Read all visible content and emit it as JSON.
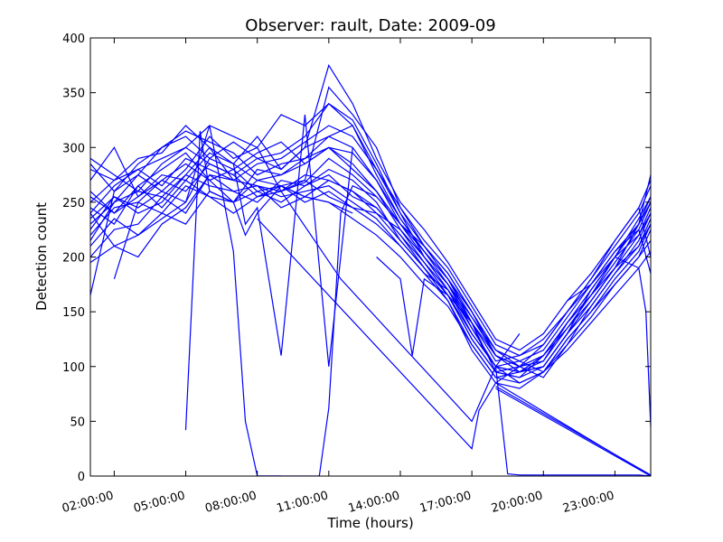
{
  "chart_data": {
    "type": "line",
    "title": "Observer: rault, Date: 2009-09",
    "xlabel": "Time (hours)",
    "ylabel": "Detection count",
    "ylim": [
      0,
      400
    ],
    "xlim": [
      1.0,
      24.5
    ],
    "x_ticks": [
      2,
      5,
      8,
      11,
      14,
      17,
      20,
      23
    ],
    "x_tick_labels": [
      "02:00:00",
      "05:00:00",
      "08:00:00",
      "11:00:00",
      "14:00:00",
      "17:00:00",
      "20:00:00",
      "23:00:00"
    ],
    "y_ticks": [
      0,
      50,
      100,
      150,
      200,
      250,
      300,
      350,
      400
    ],
    "y_tick_labels": [
      "0",
      "50",
      "100",
      "150",
      "200",
      "250",
      "300",
      "350",
      "400"
    ],
    "grid": false,
    "line_color": "#0000ff",
    "series": [
      {
        "x": [
          1.0,
          2.0,
          3.0,
          4.0,
          5.0,
          6.0,
          7.0,
          8.0,
          9.0,
          10.0,
          11.0,
          12.0,
          13.0,
          14.0,
          15.0,
          16.0,
          17.0,
          18.0,
          19.0,
          20.0,
          21.0,
          22.0,
          23.0,
          24.0,
          24.5
        ],
        "y": [
          215,
          250,
          260,
          255,
          275,
          300,
          270,
          265,
          260,
          268,
          290,
          275,
          255,
          230,
          210,
          185,
          150,
          110,
          100,
          105,
          140,
          165,
          190,
          230,
          275
        ]
      },
      {
        "x": [
          1.0,
          2.0,
          3.0,
          4.0,
          5.0,
          6.0,
          7.0,
          8.0,
          9.0,
          10.0,
          11.0,
          12.0,
          13.0,
          14.0,
          15.0,
          16.0,
          17.0,
          18.0,
          19.0,
          20.0,
          21.0,
          22.0,
          23.0,
          24.0,
          24.5
        ],
        "y": [
          240,
          265,
          280,
          290,
          300,
          285,
          275,
          290,
          295,
          310,
          340,
          320,
          280,
          240,
          200,
          175,
          140,
          95,
          90,
          100,
          130,
          170,
          200,
          235,
          255
        ]
      },
      {
        "x": [
          1.0,
          2.0,
          3.0,
          4.0,
          5.0,
          6.0,
          7.0,
          8.0,
          9.0,
          10.0,
          11.0,
          12.0,
          13.0,
          14.0,
          15.0,
          16.0,
          17.0,
          18.0,
          19.0,
          20.0,
          21.0,
          22.0,
          23.0,
          24.0,
          24.5
        ],
        "y": [
          260,
          240,
          255,
          270,
          285,
          270,
          250,
          280,
          275,
          285,
          300,
          280,
          260,
          225,
          195,
          170,
          130,
          100,
          85,
          95,
          120,
          155,
          185,
          210,
          230
        ]
      },
      {
        "x": [
          1.0,
          2.0,
          3.0,
          4.0,
          5.0,
          6.0,
          7.0,
          8.0,
          9.0,
          10.0,
          11.0,
          12.0,
          13.0,
          14.0,
          15.0,
          16.0,
          17.0,
          18.0,
          19.0,
          20.0,
          21.0,
          22.0,
          23.0,
          24.0,
          24.5
        ],
        "y": [
          225,
          255,
          245,
          260,
          250,
          290,
          280,
          260,
          250,
          265,
          280,
          270,
          250,
          215,
          190,
          160,
          120,
          90,
          95,
          110,
          140,
          165,
          200,
          220,
          245
        ]
      },
      {
        "x": [
          1.0,
          2.0,
          3.0,
          4.0,
          5.0,
          6.0,
          7.0,
          8.0,
          9.0,
          10.0,
          11.0,
          12.0,
          13.0,
          14.0,
          15.0,
          16.0,
          17.0,
          18.0,
          19.0,
          20.0,
          21.0,
          22.0,
          23.0,
          24.0,
          24.5
        ],
        "y": [
          280,
          270,
          290,
          295,
          320,
          300,
          285,
          310,
          280,
          300,
          310,
          320,
          275,
          235,
          205,
          180,
          140,
          105,
          110,
          125,
          150,
          180,
          215,
          245,
          270
        ]
      },
      {
        "x": [
          1.0,
          2.0,
          3.0,
          4.0,
          5.0,
          6.0,
          7.0,
          8.0,
          9.0,
          10.0,
          11.0,
          12.0,
          13.0,
          14.0,
          15.0,
          16.0,
          17.0,
          18.0,
          19.0,
          20.0,
          21.0,
          22.0,
          23.0,
          24.0,
          24.5
        ],
        "y": [
          245,
          230,
          265,
          245,
          270,
          255,
          240,
          255,
          265,
          250,
          260,
          245,
          230,
          210,
          185,
          170,
          135,
          100,
          105,
          95,
          125,
          150,
          175,
          200,
          215
        ]
      },
      {
        "x": [
          1.0,
          2.0,
          3.0,
          4.0,
          5.0,
          6.0,
          7.0,
          8.0,
          9.0,
          10.0,
          11.0,
          12.0,
          13.0,
          14.0,
          15.0,
          16.0,
          17.0,
          18.0,
          19.0,
          20.0,
          21.0,
          22.0,
          23.0,
          24.0,
          24.5
        ],
        "y": [
          165,
          260,
          285,
          300,
          315,
          305,
          295,
          275,
          285,
          290,
          310,
          300,
          270,
          230,
          200,
          175,
          145,
          115,
          100,
          120,
          150,
          175,
          205,
          225,
          250
        ]
      },
      {
        "x": [
          1.0,
          2.0,
          3.0,
          4.0,
          5.0,
          6.0,
          7.0,
          8.0,
          9.0,
          10.0,
          11.0,
          12.0,
          13.0,
          14.0,
          15.0,
          16.0,
          17.0,
          18.0,
          19.0,
          20.0,
          21.0,
          22.0,
          23.0,
          24.0,
          24.5
        ],
        "y": [
          195,
          210,
          200,
          230,
          245,
          275,
          260,
          250,
          270,
          265,
          275,
          255,
          245,
          220,
          195,
          165,
          125,
          95,
          90,
          110,
          135,
          160,
          190,
          210,
          235
        ]
      },
      {
        "x": [
          1.0,
          2.0,
          3.0,
          4.0,
          5.0,
          6.0,
          7.0,
          8.0,
          9.0,
          10.0,
          11.0,
          12.0,
          13.0,
          14.0,
          15.0,
          16.0,
          17.0,
          18.0,
          19.0,
          20.0,
          21.0,
          22.0,
          23.0,
          24.0,
          24.5
        ],
        "y": [
          230,
          250,
          275,
          260,
          280,
          310,
          290,
          300,
          260,
          270,
          355,
          330,
          300,
          245,
          210,
          185,
          150,
          110,
          95,
          100,
          130,
          160,
          190,
          220,
          240
        ]
      },
      {
        "x": [
          1.0,
          2.0,
          3.0,
          4.0,
          5.0,
          6.0,
          7.0,
          8.0,
          9.0,
          10.0,
          11.0,
          12.0,
          13.0,
          14.0,
          15.0,
          16.0,
          17.0,
          18.0,
          19.0,
          20.0,
          21.0,
          22.0,
          23.0,
          24.0,
          24.5
        ],
        "y": [
          290,
          275,
          260,
          285,
          300,
          320,
          310,
          300,
          330,
          320,
          340,
          325,
          285,
          240,
          210,
          180,
          150,
          115,
          105,
          115,
          145,
          175,
          205,
          230,
          250
        ]
      },
      {
        "x": [
          1.0,
          2.0,
          3.0,
          4.0,
          5.0,
          6.0,
          7.0,
          8.0,
          9.0,
          10.0,
          11.0,
          12.0,
          13.0,
          14.0,
          15.0,
          16.0,
          17.0,
          18.0,
          19.0,
          20.0,
          21.0,
          22.0,
          23.0,
          24.0,
          24.5
        ],
        "y": [
          210,
          235,
          220,
          240,
          230,
          260,
          250,
          270,
          265,
          255,
          250,
          235,
          220,
          200,
          175,
          155,
          120,
          90,
          85,
          95,
          115,
          140,
          165,
          190,
          205
        ]
      },
      {
        "x": [
          1.0,
          2.0,
          3.0,
          4.0,
          5.0,
          6.0,
          7.0,
          8.0,
          9.0,
          10.0,
          11.0,
          12.0,
          13.0,
          14.0,
          15.0,
          16.0,
          17.0,
          18.0,
          19.0,
          20.0,
          21.0,
          22.0,
          23.0,
          24.0,
          24.5
        ],
        "y": [
          250,
          270,
          280,
          265,
          290,
          280,
          270,
          285,
          290,
          305,
          320,
          310,
          280,
          245,
          215,
          190,
          155,
          120,
          110,
          120,
          150,
          180,
          210,
          240,
          265
        ]
      },
      {
        "x": [
          1.0,
          2.0,
          3.0,
          4.0,
          5.0,
          6.0,
          7.0,
          8.0,
          9.0,
          10.0,
          11.0,
          12.0,
          13.0,
          14.0,
          15.0,
          16.0,
          17.0,
          18.0,
          19.0,
          20.0,
          21.0,
          22.0,
          23.0,
          24.0,
          24.5
        ],
        "y": [
          270,
          300,
          255,
          275,
          270,
          295,
          285,
          270,
          275,
          290,
          300,
          285,
          260,
          230,
          205,
          175,
          135,
          100,
          95,
          105,
          135,
          165,
          195,
          225,
          185
        ]
      },
      {
        "x": [
          1.0,
          2.0,
          3.0,
          4.0,
          5.0,
          6.0,
          7.0,
          8.0,
          9.0,
          10.0,
          11.0,
          12.0,
          13.0,
          14.0,
          15.0,
          16.0,
          17.0,
          18.0,
          19.0,
          20.0,
          21.0,
          22.0,
          23.0,
          24.0,
          24.5
        ],
        "y": [
          220,
          245,
          250,
          270,
          260,
          285,
          275,
          255,
          260,
          275,
          270,
          260,
          240,
          215,
          190,
          165,
          125,
          95,
          100,
          90,
          120,
          145,
          175,
          200,
          225
        ]
      },
      {
        "x": [
          1.0,
          2.0,
          3.0,
          4.0,
          5.0,
          6.0,
          7.0,
          8.0,
          9.0,
          10.0,
          11.0,
          12.0,
          13.0,
          14.0,
          15.0,
          16.0,
          17.0,
          18.0,
          19.0,
          20.0,
          21.0,
          22.0,
          23.0,
          24.0,
          24.5
        ],
        "y": [
          285,
          260,
          275,
          300,
          310,
          290,
          305,
          290,
          280,
          300,
          375,
          340,
          290,
          250,
          225,
          195,
          160,
          125,
          115,
          130,
          160,
          185,
          215,
          245,
          200
        ]
      },
      {
        "x": [
          1.0,
          2.0,
          3.0,
          4.0,
          5.0,
          6.0,
          7.0,
          8.0,
          9.0,
          10.0,
          11.0,
          12.0,
          13.0,
          14.0,
          15.0,
          16.0,
          17.0,
          18.0,
          19.0,
          20.0,
          21.0,
          22.0,
          23.0,
          24.0,
          24.5
        ],
        "y": [
          235,
          255,
          240,
          250,
          275,
          265,
          260,
          265,
          255,
          260,
          265,
          250,
          235,
          210,
          185,
          160,
          115,
          85,
          80,
          95,
          125,
          150,
          180,
          205,
          230
        ]
      },
      {
        "x": [
          1.0,
          2.0,
          3.0,
          4.0,
          5.0,
          6.0,
          7.0,
          8.0,
          9.0,
          10.0,
          11.0,
          12.0,
          13.0,
          14.0,
          15.0,
          16.0,
          17.0,
          18.0,
          19.0,
          20.0,
          21.0,
          22.0,
          23.0,
          24.0,
          24.5
        ],
        "y": [
          255,
          240,
          265,
          280,
          295,
          270,
          280,
          295,
          305,
          285,
          300,
          295,
          270,
          235,
          205,
          180,
          145,
          110,
          100,
          110,
          140,
          170,
          200,
          230,
          255
        ]
      },
      {
        "x": [
          1.0,
          2.0,
          3.0,
          4.0,
          5.0,
          6.0,
          7.0,
          8.0,
          9.0,
          10.0,
          11.0,
          12.0,
          13.0,
          14.0,
          15.0,
          16.0,
          17.0,
          18.0,
          19.0,
          20.0,
          21.0,
          22.0,
          23.0,
          24.0,
          24.5
        ],
        "y": [
          200,
          225,
          230,
          255,
          240,
          275,
          270,
          265,
          245,
          255,
          270,
          260,
          245,
          220,
          190,
          165,
          130,
          100,
          95,
          100,
          130,
          155,
          185,
          215,
          240
        ]
      },
      {
        "x": [
          2.0,
          3.0,
          4.0,
          5.0,
          6.0,
          7.0,
          8.0,
          9.0,
          10.0,
          11.0,
          12.0,
          13.0,
          14.0,
          15.0,
          16.0,
          17.0,
          18.0
        ],
        "y": [
          180,
          250,
          240,
          265,
          255,
          250,
          260,
          265,
          270,
          255,
          245,
          240,
          225,
          200,
          170,
          140,
          110
        ]
      },
      {
        "x": [
          1.0,
          2.0,
          3.0,
          4.0,
          5.0,
          6.0,
          7.0,
          7.5,
          8.0,
          9.0
        ],
        "y": [
          240,
          210,
          220,
          235,
          250,
          320,
          205,
          50,
          0,
          0
        ]
      },
      {
        "x": [
          5.0,
          5.6,
          6.0,
          7.0,
          7.5,
          8.0,
          9.0,
          10.0,
          11.0,
          12.0
        ],
        "y": [
          42,
          315,
          260,
          250,
          220,
          240,
          265,
          255,
          250,
          240
        ]
      },
      {
        "x": [
          8.0,
          9.0,
          10.0,
          10.6,
          11.0,
          11.5,
          12.0,
          13.0
        ],
        "y": [
          0,
          0,
          0,
          0,
          62,
          240,
          265,
          255
        ]
      },
      {
        "x": [
          7.0,
          7.5,
          8.0,
          9.0,
          10.0,
          11.0,
          12.0
        ],
        "y": [
          285,
          230,
          245,
          110,
          330,
          100,
          300
        ]
      },
      {
        "x": [
          9.0,
          11.5,
          17.0,
          18.0,
          19.0
        ],
        "y": [
          260,
          180,
          50,
          100,
          130
        ]
      },
      {
        "x": [
          8.0,
          17.0,
          17.3,
          18.0,
          19.0
        ],
        "y": [
          235,
          25,
          60,
          85,
          100
        ]
      },
      {
        "x": [
          13.0,
          14.0,
          14.5,
          15.0,
          16.0,
          17.0,
          17.5
        ],
        "y": [
          200,
          180,
          110,
          180,
          165,
          140,
          115
        ]
      },
      {
        "x": [
          18.0,
          24.5
        ],
        "y": [
          80,
          0
        ]
      },
      {
        "x": [
          18.0,
          24.5
        ],
        "y": [
          85,
          0
        ]
      },
      {
        "x": [
          18.0,
          24.5
        ],
        "y": [
          82,
          1
        ]
      },
      {
        "x": [
          18.0,
          18.5,
          19.0,
          20.0,
          21.0,
          22.0,
          23.0,
          24.0,
          24.5
        ],
        "y": [
          100,
          2,
          1,
          1,
          1,
          1,
          1,
          1,
          0
        ]
      },
      {
        "x": [
          21.0,
          22.0,
          23.0,
          24.0,
          24.3,
          24.5
        ],
        "y": [
          160,
          175,
          200,
          190,
          150,
          45
        ]
      }
    ]
  }
}
